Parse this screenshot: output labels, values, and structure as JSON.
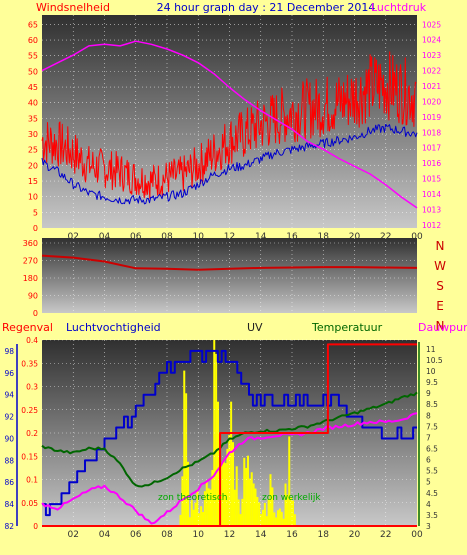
{
  "header": {
    "left_label": "Windsnelheid",
    "title": "24 hour graph day : 21 December 2014",
    "right_label": "Luchtdruk"
  },
  "wind_dir_letters": [
    "N",
    "W",
    "S",
    "E",
    "N"
  ],
  "bottom_labels": {
    "rain": "Regenval",
    "humidity": "Luchtvochtigheid",
    "uv": "UV",
    "temperature": "Temperatuur",
    "dewpoint": "Dauwpunt"
  },
  "annotations": {
    "solar_theoretical": "zon theoretisch",
    "solar_actual": "zon werkelijk"
  },
  "colors": {
    "background": "#ffff99",
    "wind_speed": "#ff0000",
    "wind_gust": "#0000cc",
    "pressure": "#ff00ff",
    "wind_direction": "#cc0000",
    "humidity": "#0000cc",
    "temperature": "#006600",
    "dewpoint": "#ff00ff",
    "uv": "#ff0000",
    "solar": "#ffff00",
    "rain": "#ff0000"
  },
  "chart_data": [
    {
      "type": "line",
      "id": "wind-pressure",
      "title": "24 hour graph day : 21 December 2014",
      "x_ticks": [
        "02",
        "04",
        "06",
        "08",
        "10",
        "12",
        "14",
        "16",
        "18",
        "20",
        "22",
        "00"
      ],
      "x_hours": [
        0,
        1,
        2,
        3,
        4,
        5,
        6,
        7,
        8,
        9,
        10,
        11,
        12,
        13,
        14,
        15,
        16,
        17,
        18,
        19,
        20,
        21,
        22,
        23,
        24
      ],
      "y_left": {
        "label": "Windsnelheid",
        "ticks": [
          0,
          5,
          10,
          15,
          20,
          25,
          30,
          35,
          40,
          45,
          50,
          55,
          60,
          65
        ],
        "range": [
          0,
          68
        ]
      },
      "y_right": {
        "label": "Luchtdruk",
        "ticks": [
          1012,
          1013,
          1014,
          1015,
          1016,
          1017,
          1018,
          1019,
          1020,
          1021,
          1022,
          1023,
          1024,
          1025
        ],
        "range": [
          1011.8,
          1025.6
        ]
      },
      "series": [
        {
          "name": "Windsnelheid",
          "axis": "left",
          "values": [
            28,
            27,
            24,
            20,
            19,
            18,
            16,
            15,
            16,
            17,
            20,
            24,
            28,
            30,
            33,
            35,
            37,
            38,
            39,
            40,
            42,
            45,
            46,
            44,
            42
          ]
        },
        {
          "name": "",
          "axis": "left",
          "values": [
            21,
            18,
            14,
            11,
            10,
            9,
            9,
            9,
            10,
            11,
            14,
            17,
            19,
            20,
            22,
            24,
            25,
            26,
            27,
            28,
            29,
            31,
            32,
            31,
            30
          ]
        },
        {
          "name": "Luchtdruk",
          "axis": "right",
          "values": [
            1022,
            1022.5,
            1023,
            1023.6,
            1023.7,
            1023.6,
            1023.9,
            1023.7,
            1023.4,
            1023.0,
            1022.5,
            1021.8,
            1020.9,
            1020.1,
            1019.4,
            1018.8,
            1018.2,
            1017.4,
            1016.9,
            1016.3,
            1015.8,
            1015.3,
            1014.6,
            1013.8,
            1013.1
          ]
        }
      ]
    },
    {
      "type": "line",
      "id": "wind-direction",
      "y": {
        "ticks": [
          0,
          90,
          180,
          270,
          360
        ],
        "range": [
          0,
          360
        ]
      },
      "x_hours": [
        0,
        2,
        4,
        6,
        8,
        10,
        12,
        14,
        16,
        18,
        20,
        22,
        24
      ],
      "values": [
        295,
        285,
        265,
        230,
        228,
        222,
        228,
        232,
        234,
        236,
        236,
        234,
        232
      ]
    },
    {
      "type": "line",
      "id": "rain-hum-uv-temp",
      "x_ticks": [
        "02",
        "04",
        "06",
        "08",
        "10",
        "12",
        "14",
        "16",
        "18",
        "20",
        "22",
        "00"
      ],
      "y_rain": {
        "label": "Regenval",
        "ticks": [
          0,
          0.05,
          0.1,
          0.15,
          0.2,
          0.25,
          0.3,
          0.35,
          0.4
        ],
        "range": [
          0,
          0.4
        ]
      },
      "y_humidity": {
        "label": "Luchtvochtigheid",
        "ticks": [
          82,
          84,
          86,
          88,
          90,
          92,
          94,
          96,
          98
        ],
        "range": [
          82,
          99
        ]
      },
      "y_temp": {
        "label": "Temperatuur",
        "ticks": [
          3,
          3.5,
          4,
          4.5,
          5,
          5.5,
          6,
          6.5,
          7,
          7.5,
          8,
          8.5,
          9,
          9.5,
          10,
          10.5,
          11
        ],
        "range": [
          3,
          11.4
        ]
      },
      "series": [
        {
          "name": "Luchtvochtigheid",
          "axis": "humidity",
          "x": [
            0,
            1,
            2,
            3,
            4,
            5,
            6,
            7,
            8,
            9,
            10,
            11,
            12,
            13,
            14,
            15,
            16,
            17,
            18,
            19,
            20,
            21,
            22,
            23,
            24
          ],
          "values": [
            83.5,
            84.5,
            86,
            88,
            89.5,
            91,
            92.5,
            95,
            96.5,
            97,
            97.5,
            98,
            97,
            95,
            93,
            93.5,
            93.5,
            93.5,
            94,
            93,
            92,
            91,
            90.5,
            90,
            91
          ]
        },
        {
          "name": "Temperatuur",
          "axis": "temp",
          "x": [
            0,
            1,
            2,
            3,
            4,
            5,
            6,
            7,
            8,
            9,
            10,
            11,
            12,
            13,
            14,
            15,
            16,
            17,
            18,
            19,
            20,
            21,
            22,
            23,
            24
          ],
          "values": [
            6.6,
            6.4,
            6.3,
            6.5,
            6.5,
            5.8,
            4.8,
            4.9,
            5.2,
            5.6,
            5.9,
            6.3,
            6.9,
            7.2,
            7.3,
            7.3,
            7.4,
            7.5,
            7.7,
            7.9,
            8.1,
            8.3,
            8.5,
            8.8,
            9.0
          ]
        },
        {
          "name": "Dauwpunt",
          "axis": "temp",
          "x": [
            0,
            1,
            2,
            3,
            4,
            5,
            6,
            7,
            8,
            9,
            10,
            11,
            12,
            13,
            14,
            15,
            16,
            17,
            18,
            19,
            20,
            21,
            22,
            23,
            24
          ],
          "values": [
            4.0,
            3.8,
            4.2,
            4.6,
            4.8,
            4.3,
            3.7,
            3.1,
            3.6,
            4.2,
            4.7,
            5.3,
            6.3,
            6.9,
            7.0,
            7.1,
            7.1,
            7.2,
            7.4,
            7.5,
            7.6,
            7.7,
            7.7,
            7.8,
            8.1
          ]
        },
        {
          "name": "UV",
          "axis": "temp",
          "x": [
            0,
            11.4,
            11.4,
            18.3,
            18.3,
            24
          ],
          "values": [
            3,
            3,
            7.2,
            7.2,
            11.2,
            11.2
          ]
        },
        {
          "name": "zon werkelijk",
          "axis": "rain",
          "x": [
            8.8,
            9.0,
            9.4,
            9.8,
            10.2,
            10.6,
            11.0,
            11.4,
            11.8,
            12.2,
            12.6,
            13.0,
            13.4,
            13.8,
            14.2,
            14.6,
            15.0,
            15.4,
            15.8,
            16.2
          ],
          "values": [
            0.02,
            0.4,
            0.05,
            0.09,
            0.03,
            0.11,
            0.38,
            0.11,
            0.3,
            0.19,
            0.06,
            0.16,
            0.09,
            0.05,
            0.04,
            0.1,
            0.04,
            0.03,
            0.18,
            0.02
          ]
        },
        {
          "name": "Regenval",
          "axis": "rain",
          "x": [
            0,
            24
          ],
          "values": [
            0,
            0
          ]
        }
      ]
    }
  ]
}
